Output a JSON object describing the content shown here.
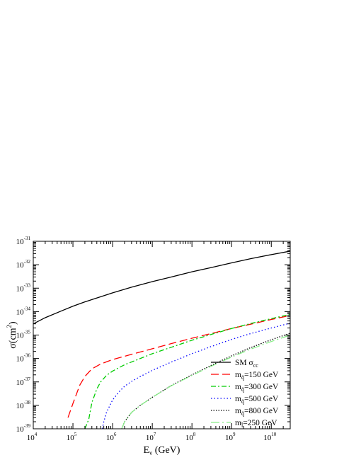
{
  "chart_data": {
    "type": "line",
    "xlabel": "E",
    "xlabel_sub": "ν",
    "xlabel_unit": " (GeV)",
    "ylabel": "σ(cm",
    "ylabel_sup": "2",
    "ylabel_end": ")",
    "x_scale": "log",
    "y_scale": "log",
    "xlim": [
      10000,
      30000000000
    ],
    "ylim": [
      1e-39,
      1e-31
    ],
    "grid": false,
    "legend_position": "bottom-right",
    "x_ticks": [
      {
        "base": "10",
        "exp": "4"
      },
      {
        "base": "10",
        "exp": "5"
      },
      {
        "base": "10",
        "exp": "6"
      },
      {
        "base": "10",
        "exp": "7"
      },
      {
        "base": "10",
        "exp": "8"
      },
      {
        "base": "10",
        "exp": "9"
      },
      {
        "base": "10",
        "exp": "10"
      }
    ],
    "y_ticks": [
      {
        "base": "10",
        "exp": "-39"
      },
      {
        "base": "10",
        "exp": "-38"
      },
      {
        "base": "10",
        "exp": "-37"
      },
      {
        "base": "10",
        "exp": "-36"
      },
      {
        "base": "10",
        "exp": "-35"
      },
      {
        "base": "10",
        "exp": "-34"
      },
      {
        "base": "10",
        "exp": "-33"
      },
      {
        "base": "10",
        "exp": "-32"
      },
      {
        "base": "10",
        "exp": "-31"
      }
    ],
    "series": [
      {
        "name": "SM σ",
        "name_sub": "cc",
        "color": "#000000",
        "dash": "",
        "x": [
          10000,
          20000,
          50000,
          100000,
          200000,
          500000,
          1000000,
          3000000,
          10000000,
          30000000,
          100000000,
          300000000,
          1000000000,
          3000000000,
          10000000000,
          30000000000
        ],
        "y": [
          3e-35,
          5.5e-35,
          1.05e-34,
          1.7e-34,
          2.6e-34,
          4.3e-34,
          6.3e-34,
          1.1e-33,
          1.9e-33,
          3e-33,
          5e-33,
          7.5e-33,
          1.2e-32,
          1.8e-32,
          2.7e-32,
          3.8e-32
        ]
      },
      {
        "name": "m",
        "name_sub": "q̃",
        "name_rest": "=150 GeV",
        "color": "#ff0000",
        "dash": "11,5",
        "x": [
          75000,
          100000,
          150000,
          200000,
          300000,
          500000,
          1000000,
          3000000,
          10000000,
          30000000,
          100000000,
          300000000,
          1000000000,
          3000000000,
          10000000000,
          30000000000
        ],
        "y": [
          3e-39,
          1.2e-38,
          7.5e-38,
          1.7e-37,
          3.6e-37,
          5.8e-37,
          9e-37,
          1.5e-36,
          2.6e-36,
          4.3e-36,
          7.3e-36,
          1.15e-35,
          1.9e-35,
          2.9e-35,
          4.6e-35,
          6.8e-35
        ]
      },
      {
        "name": "m",
        "name_sub": "q̃",
        "name_rest": "=300 GeV",
        "color": "#00cc00",
        "dash": "7,3,2,3",
        "x": [
          200000,
          250000,
          300000,
          400000,
          500000,
          700000,
          1000000,
          2000000,
          5000000,
          10000000,
          30000000,
          100000000,
          300000000,
          1000000000,
          3000000000,
          10000000000,
          30000000000
        ],
        "y": [
          1e-39,
          2.5e-39,
          1.3e-38,
          5e-38,
          1e-37,
          1.9e-37,
          2.9e-37,
          5.4e-37,
          1e-36,
          1.6e-36,
          3e-36,
          6e-36,
          1.05e-35,
          1.9e-35,
          3.1e-35,
          5e-35,
          7.6e-35
        ]
      },
      {
        "name": "m",
        "name_sub": "q̃",
        "name_rest": "=500 GeV",
        "color": "#0000ff",
        "dash": "1.5,3",
        "x": [
          550000,
          600000,
          700000,
          1000000,
          1500000,
          2000000,
          3000000,
          5000000,
          10000000,
          30000000,
          100000000,
          300000000,
          1000000000,
          3000000000,
          10000000000,
          30000000000
        ],
        "y": [
          1e-39,
          2e-39,
          5e-39,
          1.7e-38,
          4e-38,
          6.5e-38,
          1.05e-37,
          1.7e-37,
          3.1e-37,
          7e-37,
          1.6e-36,
          3.2e-36,
          6.5e-36,
          1.15e-35,
          2e-35,
          3.2e-35
        ]
      },
      {
        "name": "m",
        "name_sub": "q̃",
        "name_rest": "=800 GeV",
        "color": "#000000",
        "dash": "1.5,2",
        "x": [
          1700000,
          2000000,
          3000000,
          5000000,
          10000000,
          30000000,
          100000000,
          300000000,
          1000000000,
          3000000000,
          10000000000,
          30000000000
        ],
        "y": [
          1e-39,
          2e-39,
          5e-39,
          1e-38,
          2.2e-38,
          7e-38,
          2e-37,
          5e-37,
          1.3e-36,
          2.9e-36,
          6.3e-36,
          1.2e-35
        ]
      },
      {
        "name": "m",
        "name_sub": "l̃",
        "name_rest": "=250 GeV",
        "color": "#88ee88",
        "dash": "12,4,2,4",
        "x": [
          1700000,
          2000000,
          3000000,
          5000000,
          10000000,
          30000000,
          100000000,
          300000000,
          1000000000,
          3000000000,
          10000000000,
          30000000000
        ],
        "y": [
          1e-39,
          2e-39,
          5e-39,
          1e-38,
          2.2e-38,
          6.8e-38,
          1.9e-37,
          4.6e-37,
          1.15e-36,
          2.5e-36,
          5.3e-36,
          1e-35
        ]
      }
    ]
  }
}
